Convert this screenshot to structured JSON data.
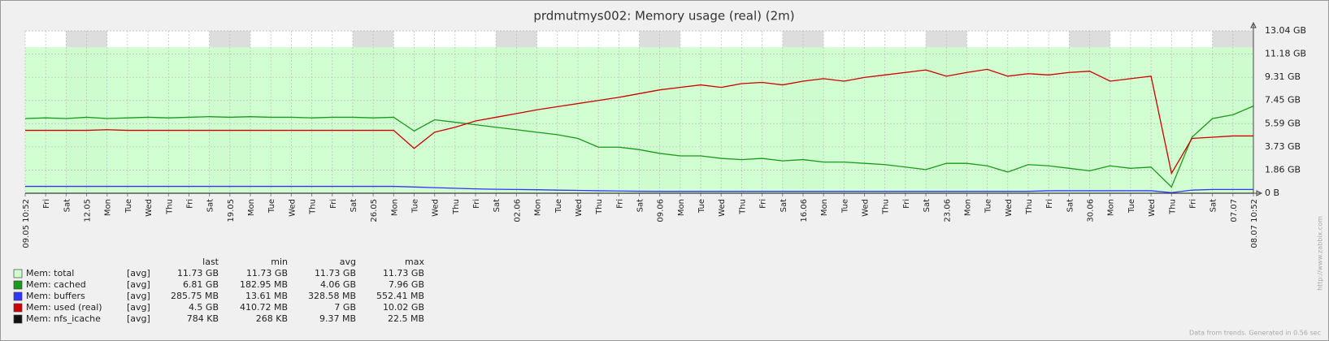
{
  "chart_data": {
    "type": "line",
    "title": "prdmutmys002: Memory usage (real) (2m)",
    "categories": [
      "09.05 10:52",
      "Fri",
      "Sat",
      "12.05",
      "Mon",
      "Tue",
      "Wed",
      "Thu",
      "Fri",
      "Sat",
      "19.05",
      "Mon",
      "Tue",
      "Wed",
      "Thu",
      "Fri",
      "Sat",
      "26.05",
      "Mon",
      "Tue",
      "Wed",
      "Thu",
      "Fri",
      "Sat",
      "02.06",
      "Mon",
      "Tue",
      "Wed",
      "Thu",
      "Fri",
      "Sat",
      "09.06",
      "Mon",
      "Tue",
      "Wed",
      "Thu",
      "Fri",
      "Sat",
      "16.06",
      "Mon",
      "Tue",
      "Wed",
      "Thu",
      "Fri",
      "Sat",
      "23.06",
      "Mon",
      "Tue",
      "Wed",
      "Thu",
      "Fri",
      "Sat",
      "30.06",
      "Mon",
      "Tue",
      "Wed",
      "Thu",
      "Fri",
      "Sat",
      "07.07",
      "08.07 10:52"
    ],
    "ylim": [
      0,
      13.04
    ],
    "yticks": [
      {
        "value": 0,
        "label": "0 B"
      },
      {
        "value": 1.86,
        "label": "1.86 GB"
      },
      {
        "value": 3.73,
        "label": "3.73 GB"
      },
      {
        "value": 5.59,
        "label": "5.59 GB"
      },
      {
        "value": 7.45,
        "label": "7.45 GB"
      },
      {
        "value": 9.31,
        "label": "9.31 GB"
      },
      {
        "value": 11.18,
        "label": "11.18 GB"
      },
      {
        "value": 13.04,
        "label": "13.04 GB"
      }
    ],
    "grid": true,
    "stat_labels": [
      "last",
      "min",
      "avg",
      "max"
    ],
    "series": [
      {
        "name": "Mem: total",
        "color": "#ccffcc",
        "fill": true,
        "function": "[avg]",
        "stats": [
          "11.73 GB",
          "11.73 GB",
          "11.73 GB",
          "11.73 GB"
        ],
        "values": [
          11.73,
          11.73,
          11.73,
          11.73,
          11.73,
          11.73,
          11.73,
          11.73,
          11.73,
          11.73,
          11.73,
          11.73,
          11.73,
          11.73,
          11.73,
          11.73,
          11.73,
          11.73,
          11.73,
          11.73,
          11.73,
          11.73,
          11.73,
          11.73,
          11.73,
          11.73,
          11.73,
          11.73,
          11.73,
          11.73,
          11.73,
          11.73,
          11.73,
          11.73,
          11.73,
          11.73,
          11.73,
          11.73,
          11.73,
          11.73,
          11.73,
          11.73,
          11.73,
          11.73,
          11.73,
          11.73,
          11.73,
          11.73,
          11.73,
          11.73,
          11.73,
          11.73,
          11.73,
          11.73,
          11.73,
          11.73,
          11.73,
          11.73,
          11.73,
          11.73,
          11.73
        ]
      },
      {
        "name": "Mem: cached",
        "color": "#1a9a1a",
        "function": "[avg]",
        "stats": [
          "6.81 GB",
          "182.95 MB",
          "4.06 GB",
          "7.96 GB"
        ],
        "values": [
          6.0,
          6.05,
          6.0,
          6.1,
          6.0,
          6.05,
          6.1,
          6.05,
          6.1,
          6.15,
          6.1,
          6.15,
          6.1,
          6.1,
          6.05,
          6.1,
          6.1,
          6.05,
          6.1,
          5.0,
          5.9,
          5.7,
          5.5,
          5.3,
          5.1,
          4.9,
          4.7,
          4.4,
          3.7,
          3.7,
          3.5,
          3.2,
          3.0,
          3.0,
          2.8,
          2.7,
          2.8,
          2.6,
          2.7,
          2.5,
          2.5,
          2.4,
          2.3,
          2.1,
          1.9,
          2.4,
          2.4,
          2.2,
          1.7,
          2.3,
          2.2,
          2.0,
          1.8,
          2.2,
          2.0,
          2.1,
          0.5,
          4.5,
          6.0,
          6.3,
          7.0
        ]
      },
      {
        "name": "Mem: buffers",
        "color": "#3333ff",
        "function": "[avg]",
        "stats": [
          "285.75 MB",
          "13.61 MB",
          "328.58 MB",
          "552.41 MB"
        ],
        "values": [
          0.55,
          0.55,
          0.55,
          0.55,
          0.55,
          0.55,
          0.55,
          0.55,
          0.55,
          0.55,
          0.55,
          0.55,
          0.55,
          0.55,
          0.55,
          0.55,
          0.55,
          0.55,
          0.55,
          0.5,
          0.45,
          0.4,
          0.35,
          0.32,
          0.3,
          0.28,
          0.25,
          0.23,
          0.2,
          0.18,
          0.16,
          0.15,
          0.15,
          0.15,
          0.15,
          0.15,
          0.15,
          0.15,
          0.15,
          0.15,
          0.15,
          0.15,
          0.15,
          0.15,
          0.15,
          0.15,
          0.15,
          0.15,
          0.15,
          0.15,
          0.2,
          0.2,
          0.2,
          0.2,
          0.2,
          0.2,
          0.05,
          0.25,
          0.3,
          0.3,
          0.3
        ]
      },
      {
        "name": "Mem: used (real)",
        "color": "#cc0000",
        "function": "[avg]",
        "stats": [
          "4.5 GB",
          "410.72 MB",
          "7 GB",
          "10.02 GB"
        ],
        "values": [
          5.05,
          5.05,
          5.05,
          5.05,
          5.1,
          5.05,
          5.05,
          5.05,
          5.05,
          5.05,
          5.05,
          5.05,
          5.05,
          5.05,
          5.05,
          5.05,
          5.05,
          5.05,
          5.05,
          3.6,
          4.9,
          5.3,
          5.8,
          6.1,
          6.4,
          6.7,
          6.95,
          7.2,
          7.45,
          7.7,
          8.0,
          8.3,
          8.5,
          8.7,
          8.5,
          8.8,
          8.9,
          8.7,
          9.0,
          9.2,
          9.0,
          9.3,
          9.5,
          9.7,
          9.9,
          9.4,
          9.7,
          9.95,
          9.4,
          9.6,
          9.5,
          9.7,
          9.8,
          9.0,
          9.2,
          9.4,
          1.6,
          4.4,
          4.5,
          4.6,
          4.6
        ]
      },
      {
        "name": "Mem: nfs_icache",
        "color": "#111111",
        "function": "[avg]",
        "stats": [
          "784 KB",
          "268 KB",
          "9.37 MB",
          "22.5 MB"
        ],
        "values": [
          0.0007,
          0.0007,
          0.0007,
          0.0007,
          0.0007,
          0.0007,
          0.0007,
          0.0007,
          0.0007,
          0.0007,
          0.0007,
          0.0007,
          0.0007,
          0.0007,
          0.0007,
          0.0007,
          0.0007,
          0.0007,
          0.0007,
          0.0007,
          0.0007,
          0.0007,
          0.0007,
          0.0007,
          0.0007,
          0.0007,
          0.0007,
          0.0007,
          0.0007,
          0.0007,
          0.0007,
          0.0007,
          0.0007,
          0.0007,
          0.0007,
          0.0007,
          0.0007,
          0.0007,
          0.0007,
          0.0007,
          0.0007,
          0.0007,
          0.0007,
          0.0007,
          0.0007,
          0.0007,
          0.0007,
          0.0007,
          0.0007,
          0.0007,
          0.0007,
          0.0007,
          0.0007,
          0.0007,
          0.0007,
          0.0007,
          0.0007,
          0.0007,
          0.0007,
          0.0007,
          0.0007
        ]
      }
    ],
    "footer": "Data from trends. Generated in 0.56 sec",
    "watermark": "http://www.zabbix.com"
  }
}
